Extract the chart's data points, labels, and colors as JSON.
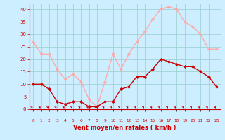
{
  "hours": [
    0,
    1,
    2,
    3,
    4,
    5,
    6,
    7,
    8,
    9,
    10,
    11,
    12,
    13,
    14,
    15,
    16,
    17,
    18,
    19,
    20,
    21,
    22,
    23
  ],
  "wind_avg": [
    10,
    10,
    8,
    3,
    2,
    3,
    3,
    1,
    1,
    3,
    3,
    8,
    9,
    13,
    13,
    16,
    20,
    19,
    18,
    17,
    17,
    15,
    13,
    9
  ],
  "wind_gust": [
    27,
    22,
    22,
    16,
    12,
    14,
    11,
    4,
    1,
    11,
    22,
    16,
    22,
    27,
    31,
    36,
    40,
    41,
    40,
    35,
    33,
    30,
    24,
    24
  ],
  "wind_avg_color": "#cc0000",
  "wind_gust_color": "#ffaaaa",
  "bg_color": "#cceeff",
  "grid_color": "#99cccc",
  "axis_color": "#cc0000",
  "xlabel": "Vent moyen/en rafales ( km/h )",
  "ylim": [
    0,
    42
  ],
  "yticks": [
    0,
    5,
    10,
    15,
    20,
    25,
    30,
    35,
    40
  ],
  "marker": "D",
  "markersize": 2.0,
  "linewidth": 1.0
}
